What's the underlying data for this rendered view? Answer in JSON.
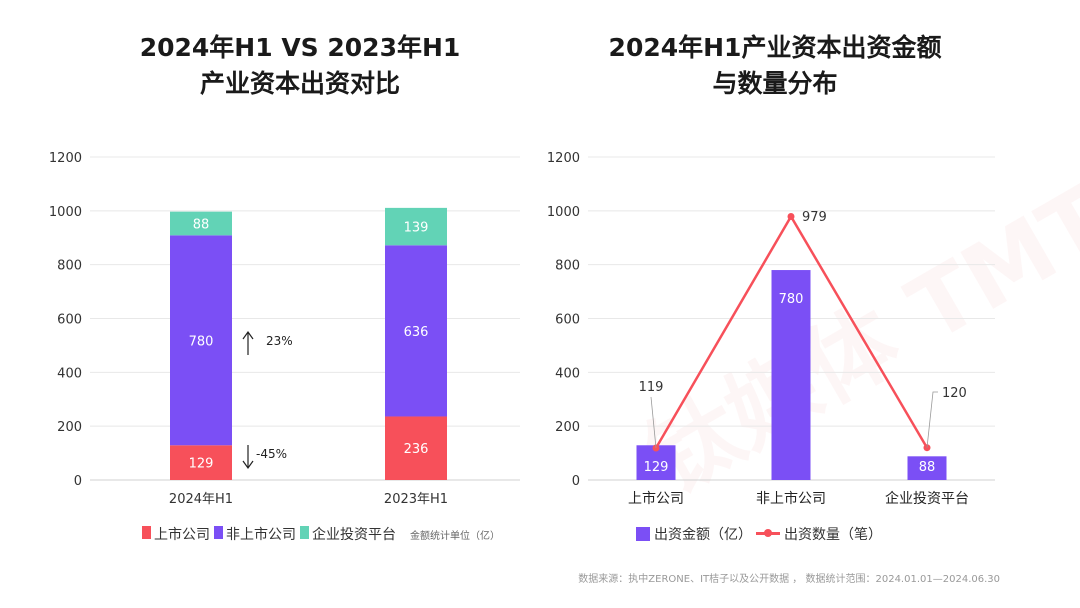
{
  "watermark": "钛媒体 TMTPOST",
  "chart_data": [
    {
      "type": "bar",
      "stacked": true,
      "title": "2024年H1 VS 2023年H1\n产业资本出资对比",
      "title_lines": [
        "2024年H1 VS 2023年H1",
        "产业资本出资对比"
      ],
      "categories": [
        "2024年H1",
        "2023年H1"
      ],
      "series": [
        {
          "name": "上市公司",
          "values": [
            129,
            236
          ],
          "color": "#f7505a"
        },
        {
          "name": "非上市公司",
          "values": [
            780,
            636
          ],
          "color": "#7b4ff5"
        },
        {
          "name": "企业投资平台",
          "values": [
            88,
            139
          ],
          "color": "#62d3b6"
        }
      ],
      "ylim": [
        0,
        1200
      ],
      "yticks": [
        0,
        200,
        400,
        600,
        800,
        1000,
        1200
      ],
      "grid": true,
      "legend": "bottom",
      "annotations": [
        {
          "text": "23%",
          "arrow": "up",
          "series": "非上市公司"
        },
        {
          "text": "-45%",
          "arrow": "down",
          "series": "上市公司"
        }
      ],
      "unit_note": "金额统计单位（亿）"
    },
    {
      "type": "bar+line",
      "title": "2024年H1产业资本出资金额\n与数量分布",
      "title_lines": [
        "2024年H1产业资本出资金额",
        "与数量分布"
      ],
      "categories": [
        "上市公司",
        "非上市公司",
        "企业投资平台"
      ],
      "series": [
        {
          "name": "出资金额（亿）",
          "type": "bar",
          "values": [
            129,
            780,
            88
          ],
          "color": "#7b4ff5"
        },
        {
          "name": "出资数量（笔）",
          "type": "line",
          "values": [
            119,
            979,
            120
          ],
          "color": "#f7505a"
        }
      ],
      "ylim": [
        0,
        1200
      ],
      "yticks": [
        0,
        200,
        400,
        600,
        800,
        1000,
        1200
      ],
      "grid": true,
      "legend": "bottom"
    }
  ],
  "source": "数据来源：执中ZERONE、IT桔子以及公开数据 ， 数据统计范围：2024.01.01—2024.06.30"
}
